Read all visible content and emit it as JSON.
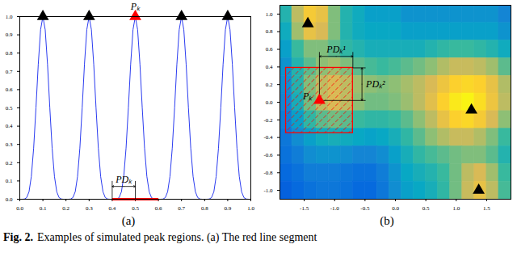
{
  "caption_label": "Fig. 2.",
  "caption": "Examples of simulated peak regions. (a) The red line segment",
  "chart_data": [
    {
      "type": "line",
      "title": "(a)",
      "x": [
        0,
        0.01,
        0.02,
        0.03,
        0.04,
        0.05,
        0.06,
        0.07,
        0.08,
        0.09,
        0.1,
        0.11,
        0.12,
        0.13,
        0.14,
        0.15,
        0.16,
        0.17,
        0.18,
        0.19,
        0.2,
        0.21,
        0.22,
        0.23,
        0.24,
        0.25,
        0.26,
        0.27,
        0.28,
        0.29,
        0.3,
        0.31,
        0.32,
        0.33,
        0.34,
        0.35,
        0.36,
        0.37,
        0.38,
        0.39,
        0.4,
        0.41,
        0.42,
        0.43,
        0.44,
        0.45,
        0.46,
        0.47,
        0.48,
        0.49,
        0.5,
        0.51,
        0.52,
        0.53,
        0.54,
        0.55,
        0.56,
        0.57,
        0.58,
        0.59,
        0.6,
        0.61,
        0.62,
        0.63,
        0.64,
        0.65,
        0.66,
        0.67,
        0.68,
        0.69,
        0.7,
        0.71,
        0.72,
        0.73,
        0.74,
        0.75,
        0.76,
        0.77,
        0.78,
        0.79,
        0.8,
        0.81,
        0.82,
        0.83,
        0.84,
        0.85,
        0.86,
        0.87,
        0.88,
        0.89,
        0.9,
        0.91,
        0.92,
        0.93,
        0.94,
        0.95,
        0.96,
        0.97,
        0.98,
        0.99,
        1
      ],
      "values": [
        0,
        0,
        0.001,
        0.009,
        0.041,
        0.125,
        0.28,
        0.5,
        0.74,
        0.928,
        1,
        0.928,
        0.74,
        0.5,
        0.28,
        0.125,
        0.041,
        0.009,
        0.001,
        0,
        0,
        0,
        0.001,
        0.009,
        0.041,
        0.125,
        0.28,
        0.5,
        0.74,
        0.928,
        1,
        0.928,
        0.74,
        0.5,
        0.28,
        0.125,
        0.041,
        0.009,
        0.001,
        0,
        0,
        0,
        0.001,
        0.009,
        0.041,
        0.125,
        0.28,
        0.5,
        0.74,
        0.928,
        1,
        0.928,
        0.74,
        0.5,
        0.28,
        0.125,
        0.041,
        0.009,
        0.001,
        0,
        0,
        0,
        0.001,
        0.009,
        0.041,
        0.125,
        0.28,
        0.5,
        0.74,
        0.928,
        1,
        0.928,
        0.74,
        0.5,
        0.28,
        0.125,
        0.041,
        0.009,
        0.001,
        0,
        0,
        0,
        0.001,
        0.009,
        0.041,
        0.125,
        0.28,
        0.5,
        0.74,
        0.928,
        1,
        0.928,
        0.74,
        0.5,
        0.28,
        0.125,
        0.041,
        0.009,
        0.001,
        0,
        0
      ],
      "color": "#2b3cf0",
      "xlim": [
        0,
        1
      ],
      "xticks": [
        {
          "value": 0,
          "label": "0.0"
        },
        {
          "value": 0.1,
          "label": "0.1"
        },
        {
          "value": 0.2,
          "label": "0.2"
        },
        {
          "value": 0.3,
          "label": "0.3"
        },
        {
          "value": 0.4,
          "label": "0.4"
        },
        {
          "value": 0.5,
          "label": "0.5"
        },
        {
          "value": 0.6,
          "label": "0.6"
        },
        {
          "value": 0.7,
          "label": "0.7"
        },
        {
          "value": 0.8,
          "label": "0.8"
        },
        {
          "value": 0.9,
          "label": "0.9"
        },
        {
          "value": 1,
          "label": "1.0"
        }
      ],
      "ylim": [
        0,
        1
      ],
      "yticks": [
        {
          "value": 0,
          "label": "0.0"
        },
        {
          "value": 0.1,
          "label": "0.1"
        },
        {
          "value": 0.2,
          "label": "0.2"
        },
        {
          "value": 0.3,
          "label": "0.3"
        },
        {
          "value": 0.4,
          "label": "0.4"
        },
        {
          "value": 0.5,
          "label": "0.5"
        },
        {
          "value": 0.6,
          "label": "0.6"
        },
        {
          "value": 0.7,
          "label": "0.7"
        },
        {
          "value": 0.8,
          "label": "0.8"
        },
        {
          "value": 0.9,
          "label": "0.9"
        },
        {
          "value": 1,
          "label": "1.0"
        }
      ],
      "peaks": {
        "x": [
          0.1,
          0.3,
          0.5,
          0.7,
          0.9
        ],
        "y": [
          1,
          1,
          1,
          1,
          1
        ],
        "colors": [
          "#000000",
          "#000000",
          "#ff0000",
          "#000000",
          "#000000"
        ],
        "labels": [
          null,
          null,
          "Pₖ",
          null,
          null
        ],
        "marker": "triangle"
      },
      "region": {
        "x": 0.5,
        "radius": 0.1,
        "label": "PDₖ",
        "color": "#ff0000"
      }
    },
    {
      "type": "heatmap",
      "title": "(b)",
      "x": [
        -1.8,
        -1.6,
        -1.4,
        -1.2,
        -1.0,
        -0.8,
        -0.6,
        -0.4,
        -0.2,
        0,
        0.2,
        0.4,
        0.6,
        0.8,
        1.0,
        1.2,
        1.4,
        1.6,
        1.8
      ],
      "y": [
        1.0,
        0.8,
        0.6,
        0.4,
        0.2,
        0,
        -0.2,
        -0.4,
        -0.6,
        -0.8,
        -1.0
      ],
      "z": [
        [
          0.45,
          0.7,
          0.85,
          0.8,
          0.6,
          0.45,
          0.4,
          0.35,
          0.35,
          0.35,
          0.3,
          0.3,
          0.3,
          0.3,
          0.3,
          0.3,
          0.3,
          0.3,
          0.25
        ],
        [
          0.4,
          0.65,
          0.8,
          0.75,
          0.6,
          0.45,
          0.4,
          0.38,
          0.38,
          0.38,
          0.35,
          0.35,
          0.35,
          0.35,
          0.35,
          0.35,
          0.35,
          0.35,
          0.3
        ],
        [
          0.35,
          0.5,
          0.6,
          0.6,
          0.55,
          0.48,
          0.45,
          0.42,
          0.42,
          0.42,
          0.42,
          0.42,
          0.45,
          0.48,
          0.5,
          0.5,
          0.48,
          0.45,
          0.4
        ],
        [
          0.3,
          0.45,
          0.55,
          0.62,
          0.65,
          0.6,
          0.55,
          0.52,
          0.5,
          0.52,
          0.55,
          0.58,
          0.62,
          0.68,
          0.72,
          0.72,
          0.7,
          0.65,
          0.55
        ],
        [
          0.28,
          0.45,
          0.6,
          0.7,
          0.75,
          0.7,
          0.65,
          0.62,
          0.6,
          0.62,
          0.66,
          0.7,
          0.75,
          0.82,
          0.88,
          0.9,
          0.88,
          0.8,
          0.68
        ],
        [
          0.25,
          0.42,
          0.58,
          0.7,
          0.75,
          0.7,
          0.62,
          0.58,
          0.58,
          0.6,
          0.64,
          0.7,
          0.78,
          0.88,
          0.95,
          0.98,
          0.92,
          0.82,
          0.7
        ],
        [
          0.22,
          0.35,
          0.48,
          0.55,
          0.58,
          0.55,
          0.5,
          0.48,
          0.48,
          0.5,
          0.55,
          0.62,
          0.7,
          0.8,
          0.88,
          0.9,
          0.85,
          0.75,
          0.62
        ],
        [
          0.2,
          0.28,
          0.35,
          0.4,
          0.42,
          0.4,
          0.38,
          0.36,
          0.38,
          0.42,
          0.48,
          0.55,
          0.62,
          0.68,
          0.72,
          0.72,
          0.68,
          0.6,
          0.5
        ],
        [
          0.18,
          0.22,
          0.28,
          0.3,
          0.3,
          0.28,
          0.25,
          0.25,
          0.28,
          0.35,
          0.42,
          0.48,
          0.52,
          0.55,
          0.58,
          0.6,
          0.6,
          0.55,
          0.45
        ],
        [
          0.15,
          0.18,
          0.22,
          0.22,
          0.22,
          0.2,
          0.18,
          0.18,
          0.22,
          0.3,
          0.38,
          0.42,
          0.45,
          0.5,
          0.58,
          0.7,
          0.75,
          0.65,
          0.5
        ],
        [
          0.12,
          0.15,
          0.18,
          0.2,
          0.2,
          0.18,
          0.15,
          0.15,
          0.2,
          0.28,
          0.35,
          0.38,
          0.42,
          0.48,
          0.58,
          0.72,
          0.8,
          0.7,
          0.52
        ]
      ],
      "zlim": [
        0,
        1
      ],
      "xlim": [
        -1.9,
        1.9
      ],
      "xticks": [
        {
          "value": -1.5,
          "label": "-1.5"
        },
        {
          "value": -1,
          "label": "-1.0"
        },
        {
          "value": -0.5,
          "label": "-0.5"
        },
        {
          "value": 0,
          "label": "0.0"
        },
        {
          "value": 0.5,
          "label": "0.5"
        },
        {
          "value": 1,
          "label": "1.0"
        },
        {
          "value": 1.5,
          "label": "1.5"
        }
      ],
      "ylim": [
        -1.1,
        1.1
      ],
      "yticks": [
        {
          "value": -1,
          "label": "-1.0"
        },
        {
          "value": -0.8,
          "label": "-0.8"
        },
        {
          "value": -0.6,
          "label": "-0.6"
        },
        {
          "value": -0.4,
          "label": "-0.4"
        },
        {
          "value": -0.2,
          "label": "-0.2"
        },
        {
          "value": 0,
          "label": "0.0"
        },
        {
          "value": 0.2,
          "label": "0.2"
        },
        {
          "value": 0.4,
          "label": "0.4"
        },
        {
          "value": 0.6,
          "label": "0.6"
        },
        {
          "value": 0.8,
          "label": "0.8"
        },
        {
          "value": 1,
          "label": "1.0"
        }
      ],
      "peaks": {
        "x": [
          -1.44,
          -1.25,
          1.25,
          1.37
        ],
        "y": [
          0.89,
          0.02,
          -0.09,
          -1.0
        ],
        "colors": [
          "#000000",
          "#ff0000",
          "#000000",
          "#000000"
        ],
        "labels": [
          null,
          "Pₖ",
          null,
          null
        ],
        "marker": "triangle"
      },
      "region": {
        "x": -1.25,
        "y": 0.02,
        "radius": [
          0.55,
          0.37
        ],
        "labels": [
          "PDₖ¹",
          "PDₖ²"
        ],
        "color": "#ff0000"
      }
    }
  ]
}
